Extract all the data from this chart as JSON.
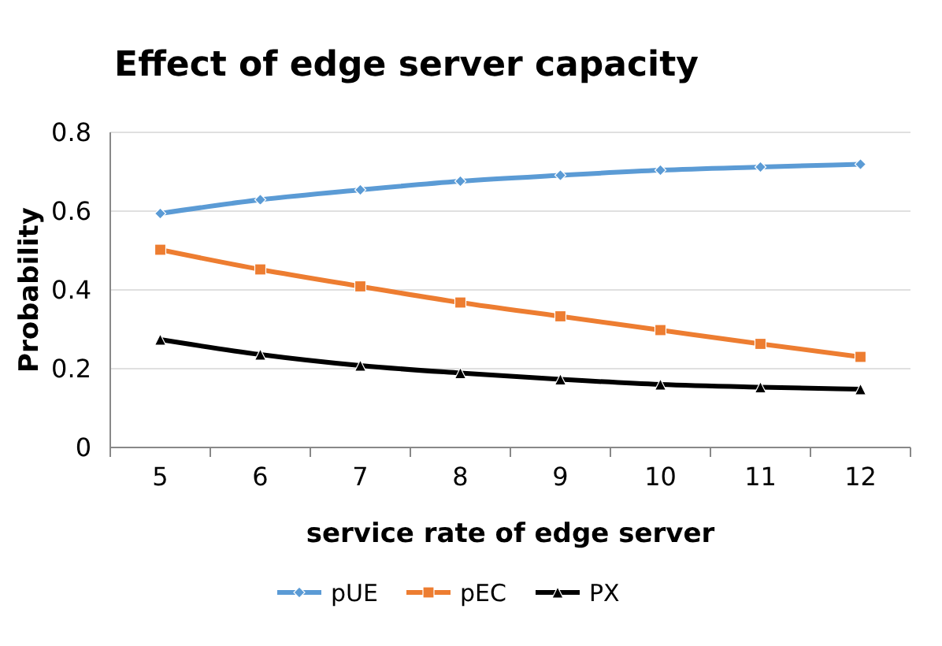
{
  "chart_data": {
    "type": "line",
    "title": "Effect of edge server capacity",
    "xlabel": "service rate of edge server",
    "ylabel": "Probability",
    "categories": [
      "5",
      "6",
      "7",
      "8",
      "9",
      "10",
      "11",
      "12"
    ],
    "series": [
      {
        "name": "pUE",
        "color": "#5b9bd5",
        "marker": "diamond",
        "values": [
          0.594,
          0.629,
          0.654,
          0.676,
          0.691,
          0.704,
          0.712,
          0.719
        ]
      },
      {
        "name": "pEC",
        "color": "#ed7d31",
        "marker": "square",
        "values": [
          0.502,
          0.452,
          0.409,
          0.368,
          0.333,
          0.298,
          0.263,
          0.23
        ]
      },
      {
        "name": "PX",
        "color": "#000000",
        "marker": "triangle",
        "values": [
          0.274,
          0.236,
          0.208,
          0.189,
          0.173,
          0.16,
          0.153,
          0.148
        ]
      }
    ],
    "ylim": [
      0,
      0.8
    ],
    "yticks": [
      0,
      0.2,
      0.4,
      0.6,
      0.8
    ],
    "grid": "y",
    "legend": "bottom"
  }
}
